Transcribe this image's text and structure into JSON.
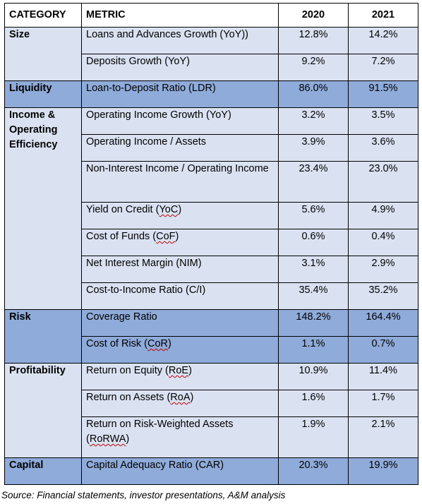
{
  "colors": {
    "light": "#dae2f2",
    "dark": "#8fabda",
    "border": "#000000"
  },
  "headers": {
    "category": "CATEGORY",
    "metric": "METRIC",
    "y2020": "2020",
    "y2021": "2021"
  },
  "rows": [
    {
      "category": "Size",
      "metric": "Loans and Advances Growth (YoY))",
      "y2020": "12.8%",
      "y2021": "14.2%"
    },
    {
      "metric": "Deposits Growth (YoY)",
      "y2020": "9.2%",
      "y2021": "7.2%"
    },
    {
      "category": "Liquidity",
      "metric": "Loan-to-Deposit Ratio (LDR)",
      "y2020": "86.0%",
      "y2021": "91.5%"
    },
    {
      "category": "Income & Operating Efficiency",
      "metric": "Operating Income Growth (YoY)",
      "y2020": "3.2%",
      "y2021": "3.5%"
    },
    {
      "metric": "Operating Income / Assets",
      "y2020": "3.9%",
      "y2021": "3.6%"
    },
    {
      "metric": "Non-Interest Income / Operating Income",
      "y2020": "23.4%",
      "y2021": "23.0%"
    },
    {
      "metric_pre": "Yield on Credit (",
      "metric_mark": "YoC",
      "metric_post": ")",
      "y2020": "5.6%",
      "y2021": "4.9%"
    },
    {
      "metric_pre": "Cost of Funds (",
      "metric_mark": "CoF",
      "metric_post": ")",
      "y2020": "0.6%",
      "y2021": "0.4%"
    },
    {
      "metric": "Net Interest Margin (NIM)",
      "y2020": "3.1%",
      "y2021": "2.9%"
    },
    {
      "metric": "Cost-to-Income Ratio (C/I)",
      "y2020": "35.4%",
      "y2021": "35.2%"
    },
    {
      "category": "Risk",
      "metric": "Coverage Ratio",
      "y2020": "148.2%",
      "y2021": "164.4%"
    },
    {
      "metric_pre": "Cost of Risk (",
      "metric_mark": "CoR",
      "metric_post": ")",
      "y2020": "1.1%",
      "y2021": "0.7%"
    },
    {
      "category": "Profitability",
      "metric_pre": "Return on Equity (",
      "metric_mark": "RoE",
      "metric_post": ")",
      "y2020": "10.9%",
      "y2021": "11.4%"
    },
    {
      "metric_pre": "Return on Assets (",
      "metric_mark": "RoA",
      "metric_post": ")",
      "y2020": "1.6%",
      "y2021": "1.7%"
    },
    {
      "metric_pre": "Return on Risk-Weighted Assets (",
      "metric_mark": "RoRWA",
      "metric_post": ")",
      "y2020": "1.9%",
      "y2021": "2.1%"
    },
    {
      "category": "Capital",
      "metric": "Capital Adequacy Ratio (CAR)",
      "y2020": "20.3%",
      "y2021": "19.9%"
    }
  ],
  "source": "Source: Financial statements, investor presentations, A&M analysis"
}
